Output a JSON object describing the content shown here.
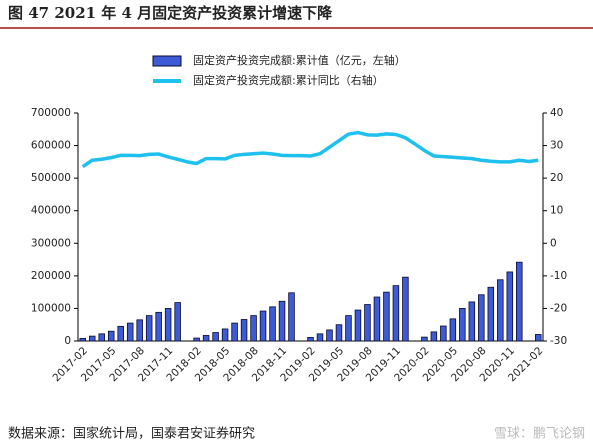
{
  "chart_data": {
    "type": "bar_line",
    "title": "图 47   2021 年 4 月固定资产投资累计增速下降",
    "source": "数据来源：国家统计局，国泰君安证券研究",
    "watermark": "雪球：鹏飞论钢",
    "categories": [
      "2017-02",
      null,
      null,
      "2017-05",
      null,
      null,
      "2017-08",
      null,
      null,
      "2017-11",
      null,
      null,
      "2018-02",
      null,
      null,
      "2018-05",
      null,
      null,
      "2018-08",
      null,
      null,
      "2018-11",
      null,
      null,
      "2019-02",
      null,
      null,
      "2019-05",
      null,
      null,
      "2019-08",
      null,
      null,
      "2019-11",
      null,
      null,
      "2020-02",
      null,
      null,
      "2020-05",
      null,
      null,
      "2020-08",
      null,
      null,
      "2020-11",
      null,
      null,
      "2021-02"
    ],
    "series": [
      {
        "name": "固定资产投资完成额:累计值（亿元，左轴）",
        "type": "bar",
        "color": "#3d5bd6",
        "axis": "y",
        "values": [
          8000,
          15000,
          22000,
          30000,
          45000,
          55000,
          65000,
          78000,
          88000,
          100000,
          118000,
          null,
          9000,
          17000,
          26000,
          37000,
          55000,
          66000,
          78000,
          92000,
          105000,
          122000,
          148000,
          null,
          11000,
          22000,
          34000,
          50000,
          78000,
          95000,
          112000,
          135000,
          150000,
          170000,
          196000,
          null,
          12000,
          28000,
          46000,
          68000,
          100000,
          120000,
          142000,
          165000,
          188000,
          212000,
          242000,
          null,
          20000
        ]
      },
      {
        "name": "固定资产投资完成额:累计同比（右轴）",
        "type": "line",
        "color": "#1ec0ee",
        "axis": "y2",
        "values": [
          23.5,
          25.5,
          25.8,
          26.3,
          27,
          27,
          26.9,
          27.3,
          27.4,
          26.5,
          25.8,
          25,
          24.5,
          26,
          26,
          25.9,
          27,
          27.3,
          27.5,
          27.7,
          27.4,
          27,
          26.9,
          26.9,
          26.8,
          27.5,
          29.5,
          31.5,
          33.5,
          34,
          33.3,
          33.2,
          33.6,
          33.4,
          32.4,
          30.5,
          28.5,
          26.8,
          26.6,
          26.4,
          26.2,
          26,
          25.5,
          25.2,
          25,
          25,
          25.5,
          25.1,
          25.5
        ]
      }
    ],
    "ylim": [
      0,
      700000
    ],
    "yticks": [
      0,
      100000,
      200000,
      300000,
      400000,
      500000,
      600000,
      700000
    ],
    "y2lim": [
      -30,
      40
    ],
    "y2ticks": [
      -30,
      -20,
      -10,
      0,
      10,
      20,
      30,
      40
    ]
  }
}
